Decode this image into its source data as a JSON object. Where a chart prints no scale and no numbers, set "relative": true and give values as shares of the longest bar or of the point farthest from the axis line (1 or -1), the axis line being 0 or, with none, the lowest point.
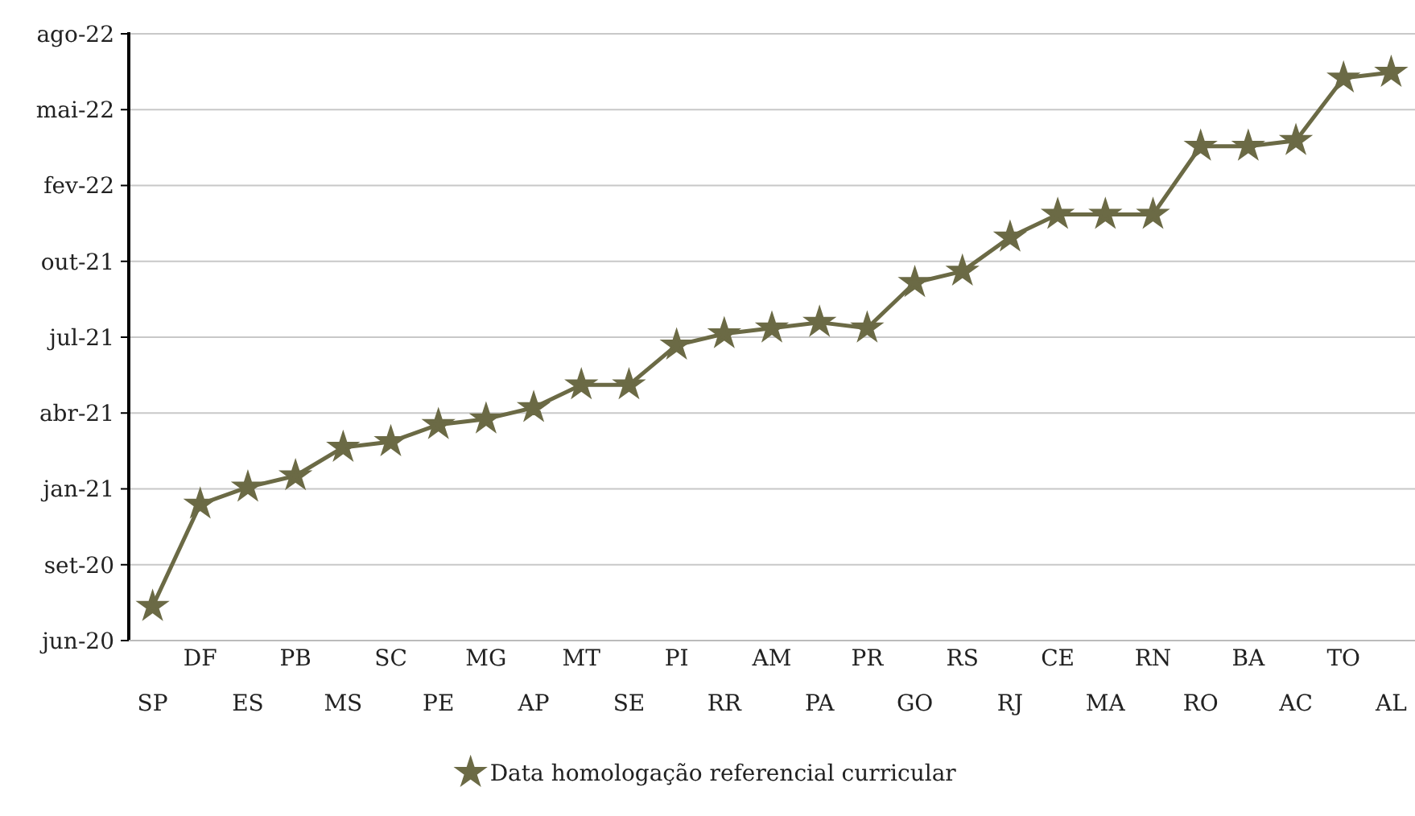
{
  "chart_data": {
    "type": "line",
    "relative": true,
    "categories": [
      "SP",
      "DF",
      "ES",
      "PB",
      "MS",
      "SC",
      "PE",
      "MG",
      "AP",
      "MT",
      "SE",
      "PI",
      "RR",
      "AM",
      "PA",
      "PR",
      "GO",
      "RS",
      "RJ",
      "CE",
      "MA",
      "RN",
      "RO",
      "BA",
      "AC",
      "TO",
      "AL"
    ],
    "series": [
      {
        "name": "Data homologação referencial curricular",
        "color": "#6b6a45",
        "values": [
          0.06,
          0.24,
          0.27,
          0.29,
          0.34,
          0.35,
          0.38,
          0.39,
          0.41,
          0.45,
          0.45,
          0.52,
          0.54,
          0.55,
          0.56,
          0.55,
          0.63,
          0.65,
          0.71,
          0.75,
          0.75,
          0.75,
          0.87,
          0.87,
          0.88,
          0.99,
          1
        ]
      }
    ],
    "annotations": [
      "jun-20",
      "set-20",
      "jan-21",
      "abr-21",
      "jul-21",
      "out-21",
      "fev-22",
      "mai-22",
      "ago-22"
    ],
    "grid": "y",
    "legend": "bottom",
    "marker": "star",
    "line_style": "solid"
  }
}
